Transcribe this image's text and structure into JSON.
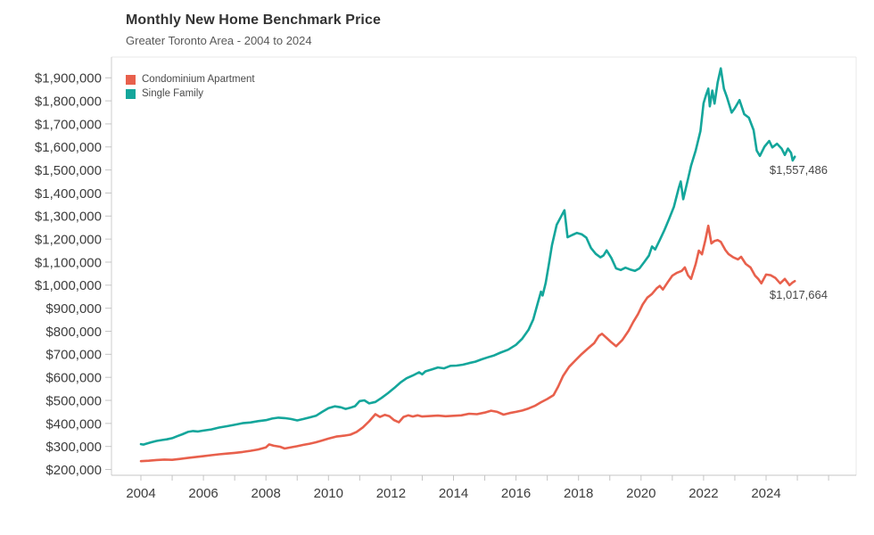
{
  "header": {
    "title": "Monthly New Home Benchmark Price",
    "subtitle": "Greater Toronto Area - 2004 to 2024"
  },
  "legend": {
    "items": [
      {
        "label": "Condominium Apartment",
        "color": "#e8604c"
      },
      {
        "label": "Single Family",
        "color": "#14a69b"
      }
    ]
  },
  "annotations": {
    "single_family_end": "$1,557,486",
    "condo_end": "$1,017,664"
  },
  "chart_data": {
    "type": "line",
    "title": "Monthly New Home Benchmark Price",
    "subtitle": "Greater Toronto Area - 2004 to 2024",
    "legend_position": "top-left-inside",
    "grid": false,
    "x_axis": {
      "range": [
        2003.05,
        2026.9
      ],
      "labeled_tick_years": [
        2004,
        2006,
        2008,
        2010,
        2012,
        2014,
        2016,
        2018,
        2020,
        2022,
        2024
      ],
      "minor_tick_years": [
        2004,
        2005,
        2006,
        2007,
        2008,
        2009,
        2010,
        2011,
        2012,
        2013,
        2014,
        2015,
        2016,
        2017,
        2018,
        2019,
        2020,
        2021,
        2022,
        2023,
        2024,
        2025,
        2026
      ],
      "tick_labels": [
        "2004",
        "2006",
        "2008",
        "2010",
        "2012",
        "2014",
        "2016",
        "2018",
        "2020",
        "2022",
        "2024"
      ]
    },
    "y_axis": {
      "range": [
        175000,
        1990000
      ],
      "tick_values": [
        200000,
        300000,
        400000,
        500000,
        600000,
        700000,
        800000,
        900000,
        1000000,
        1100000,
        1200000,
        1300000,
        1400000,
        1500000,
        1600000,
        1700000,
        1800000,
        1900000
      ],
      "tick_labels": [
        "$200,000",
        "$300,000",
        "$400,000",
        "$500,000",
        "$600,000",
        "$700,000",
        "$800,000",
        "$900,000",
        "$1,000,000",
        "$1,100,000",
        "$1,200,000",
        "$1,300,000",
        "$1,400,000",
        "$1,500,000",
        "$1,600,000",
        "$1,700,000",
        "$1,800,000",
        "$1,900,000"
      ]
    },
    "series": [
      {
        "name": "Condominium Apartment",
        "color": "#e8604c",
        "end_label": "$1,017,664",
        "end_value": 1017664,
        "points": [
          [
            2004.0,
            236000
          ],
          [
            2004.25,
            238000
          ],
          [
            2004.5,
            241000
          ],
          [
            2004.75,
            243000
          ],
          [
            2005.0,
            242000
          ],
          [
            2005.25,
            246000
          ],
          [
            2005.5,
            250000
          ],
          [
            2005.75,
            254000
          ],
          [
            2006.0,
            258000
          ],
          [
            2006.25,
            262000
          ],
          [
            2006.5,
            266000
          ],
          [
            2006.75,
            269000
          ],
          [
            2007.0,
            272000
          ],
          [
            2007.25,
            276000
          ],
          [
            2007.5,
            281000
          ],
          [
            2007.75,
            287000
          ],
          [
            2008.0,
            296000
          ],
          [
            2008.1,
            309000
          ],
          [
            2008.25,
            303000
          ],
          [
            2008.45,
            299000
          ],
          [
            2008.6,
            291000
          ],
          [
            2008.75,
            295000
          ],
          [
            2009.0,
            301000
          ],
          [
            2009.2,
            307000
          ],
          [
            2009.4,
            312000
          ],
          [
            2009.6,
            318000
          ],
          [
            2009.8,
            326000
          ],
          [
            2010.0,
            334000
          ],
          [
            2010.25,
            343000
          ],
          [
            2010.5,
            347000
          ],
          [
            2010.7,
            351000
          ],
          [
            2010.9,
            363000
          ],
          [
            2011.1,
            383000
          ],
          [
            2011.3,
            409000
          ],
          [
            2011.5,
            440000
          ],
          [
            2011.65,
            428000
          ],
          [
            2011.8,
            437000
          ],
          [
            2011.95,
            431000
          ],
          [
            2012.1,
            414000
          ],
          [
            2012.25,
            405000
          ],
          [
            2012.4,
            428000
          ],
          [
            2012.55,
            435000
          ],
          [
            2012.7,
            430000
          ],
          [
            2012.85,
            435000
          ],
          [
            2013.0,
            430000
          ],
          [
            2013.25,
            432000
          ],
          [
            2013.5,
            434000
          ],
          [
            2013.75,
            431000
          ],
          [
            2014.0,
            433000
          ],
          [
            2014.25,
            435000
          ],
          [
            2014.5,
            442000
          ],
          [
            2014.75,
            440000
          ],
          [
            2015.0,
            447000
          ],
          [
            2015.2,
            455000
          ],
          [
            2015.4,
            450000
          ],
          [
            2015.6,
            438000
          ],
          [
            2015.8,
            445000
          ],
          [
            2016.0,
            450000
          ],
          [
            2016.2,
            456000
          ],
          [
            2016.4,
            465000
          ],
          [
            2016.6,
            476000
          ],
          [
            2016.8,
            492000
          ],
          [
            2017.0,
            506000
          ],
          [
            2017.2,
            523000
          ],
          [
            2017.35,
            560000
          ],
          [
            2017.5,
            605000
          ],
          [
            2017.7,
            646000
          ],
          [
            2017.9,
            674000
          ],
          [
            2018.1,
            701000
          ],
          [
            2018.3,
            725000
          ],
          [
            2018.5,
            748000
          ],
          [
            2018.65,
            780000
          ],
          [
            2018.75,
            789000
          ],
          [
            2018.9,
            771000
          ],
          [
            2019.05,
            752000
          ],
          [
            2019.2,
            735000
          ],
          [
            2019.4,
            762000
          ],
          [
            2019.6,
            802000
          ],
          [
            2019.75,
            840000
          ],
          [
            2019.9,
            874000
          ],
          [
            2020.05,
            916000
          ],
          [
            2020.2,
            946000
          ],
          [
            2020.35,
            962000
          ],
          [
            2020.5,
            986000
          ],
          [
            2020.6,
            997000
          ],
          [
            2020.7,
            981000
          ],
          [
            2020.85,
            1012000
          ],
          [
            2021.0,
            1041000
          ],
          [
            2021.15,
            1054000
          ],
          [
            2021.3,
            1062000
          ],
          [
            2021.4,
            1077000
          ],
          [
            2021.5,
            1043000
          ],
          [
            2021.6,
            1027000
          ],
          [
            2021.75,
            1092000
          ],
          [
            2021.85,
            1150000
          ],
          [
            2021.95,
            1134000
          ],
          [
            2022.05,
            1192000
          ],
          [
            2022.15,
            1258000
          ],
          [
            2022.25,
            1181000
          ],
          [
            2022.35,
            1192000
          ],
          [
            2022.45,
            1196000
          ],
          [
            2022.55,
            1188000
          ],
          [
            2022.7,
            1152000
          ],
          [
            2022.8,
            1135000
          ],
          [
            2022.95,
            1121000
          ],
          [
            2023.1,
            1112000
          ],
          [
            2023.2,
            1123000
          ],
          [
            2023.35,
            1092000
          ],
          [
            2023.5,
            1077000
          ],
          [
            2023.65,
            1041000
          ],
          [
            2023.75,
            1027000
          ],
          [
            2023.85,
            1008000
          ],
          [
            2024.0,
            1046000
          ],
          [
            2024.15,
            1043000
          ],
          [
            2024.3,
            1031000
          ],
          [
            2024.45,
            1008000
          ],
          [
            2024.6,
            1027000
          ],
          [
            2024.75,
            1000000
          ],
          [
            2024.85,
            1012000
          ],
          [
            2024.92,
            1017664
          ]
        ]
      },
      {
        "name": "Single Family",
        "color": "#14a69b",
        "end_label": "$1,557,486",
        "end_value": 1557486,
        "points": [
          [
            2004.0,
            310000
          ],
          [
            2004.08,
            308000
          ],
          [
            2004.17,
            312000
          ],
          [
            2004.33,
            318000
          ],
          [
            2004.5,
            324000
          ],
          [
            2004.67,
            328000
          ],
          [
            2004.83,
            331000
          ],
          [
            2005.0,
            336000
          ],
          [
            2005.17,
            345000
          ],
          [
            2005.33,
            353000
          ],
          [
            2005.5,
            363000
          ],
          [
            2005.67,
            367000
          ],
          [
            2005.83,
            365000
          ],
          [
            2006.0,
            369000
          ],
          [
            2006.25,
            374000
          ],
          [
            2006.5,
            382000
          ],
          [
            2006.75,
            388000
          ],
          [
            2007.0,
            394000
          ],
          [
            2007.25,
            401000
          ],
          [
            2007.5,
            404000
          ],
          [
            2007.75,
            410000
          ],
          [
            2008.0,
            414000
          ],
          [
            2008.2,
            421000
          ],
          [
            2008.4,
            425000
          ],
          [
            2008.6,
            423000
          ],
          [
            2008.8,
            419000
          ],
          [
            2009.0,
            413000
          ],
          [
            2009.2,
            419000
          ],
          [
            2009.4,
            426000
          ],
          [
            2009.6,
            433000
          ],
          [
            2009.8,
            450000
          ],
          [
            2010.0,
            466000
          ],
          [
            2010.2,
            474000
          ],
          [
            2010.4,
            470000
          ],
          [
            2010.55,
            463000
          ],
          [
            2010.7,
            468000
          ],
          [
            2010.85,
            475000
          ],
          [
            2011.0,
            497000
          ],
          [
            2011.15,
            500000
          ],
          [
            2011.3,
            487000
          ],
          [
            2011.5,
            493000
          ],
          [
            2011.7,
            511000
          ],
          [
            2011.9,
            531000
          ],
          [
            2012.1,
            553000
          ],
          [
            2012.3,
            577000
          ],
          [
            2012.5,
            596000
          ],
          [
            2012.7,
            608000
          ],
          [
            2012.9,
            622000
          ],
          [
            2013.0,
            613000
          ],
          [
            2013.1,
            626000
          ],
          [
            2013.3,
            634000
          ],
          [
            2013.5,
            643000
          ],
          [
            2013.7,
            639000
          ],
          [
            2013.9,
            650000
          ],
          [
            2014.1,
            651000
          ],
          [
            2014.3,
            655000
          ],
          [
            2014.5,
            662000
          ],
          [
            2014.7,
            668000
          ],
          [
            2014.9,
            678000
          ],
          [
            2015.1,
            687000
          ],
          [
            2015.3,
            695000
          ],
          [
            2015.5,
            707000
          ],
          [
            2015.75,
            720000
          ],
          [
            2016.0,
            741000
          ],
          [
            2016.2,
            768000
          ],
          [
            2016.4,
            806000
          ],
          [
            2016.55,
            851000
          ],
          [
            2016.7,
            924000
          ],
          [
            2016.8,
            972000
          ],
          [
            2016.85,
            955000
          ],
          [
            2016.95,
            1010000
          ],
          [
            2017.05,
            1090000
          ],
          [
            2017.15,
            1173000
          ],
          [
            2017.3,
            1262000
          ],
          [
            2017.45,
            1300000
          ],
          [
            2017.55,
            1325000
          ],
          [
            2017.65,
            1208000
          ],
          [
            2017.8,
            1218000
          ],
          [
            2017.95,
            1227000
          ],
          [
            2018.1,
            1221000
          ],
          [
            2018.25,
            1206000
          ],
          [
            2018.4,
            1161000
          ],
          [
            2018.55,
            1136000
          ],
          [
            2018.7,
            1121000
          ],
          [
            2018.8,
            1129000
          ],
          [
            2018.9,
            1151000
          ],
          [
            2019.05,
            1118000
          ],
          [
            2019.2,
            1073000
          ],
          [
            2019.35,
            1066000
          ],
          [
            2019.5,
            1076000
          ],
          [
            2019.65,
            1068000
          ],
          [
            2019.8,
            1062000
          ],
          [
            2019.95,
            1073000
          ],
          [
            2020.1,
            1100000
          ],
          [
            2020.25,
            1128000
          ],
          [
            2020.35,
            1168000
          ],
          [
            2020.45,
            1155000
          ],
          [
            2020.6,
            1196000
          ],
          [
            2020.75,
            1240000
          ],
          [
            2020.9,
            1288000
          ],
          [
            2021.05,
            1340000
          ],
          [
            2021.2,
            1419000
          ],
          [
            2021.27,
            1450000
          ],
          [
            2021.35,
            1373000
          ],
          [
            2021.5,
            1460000
          ],
          [
            2021.6,
            1519000
          ],
          [
            2021.75,
            1585000
          ],
          [
            2021.9,
            1669000
          ],
          [
            2022.0,
            1790000
          ],
          [
            2022.08,
            1826000
          ],
          [
            2022.15,
            1853000
          ],
          [
            2022.2,
            1776000
          ],
          [
            2022.28,
            1845000
          ],
          [
            2022.35,
            1788000
          ],
          [
            2022.45,
            1880000
          ],
          [
            2022.55,
            1941000
          ],
          [
            2022.65,
            1853000
          ],
          [
            2022.75,
            1815000
          ],
          [
            2022.9,
            1749000
          ],
          [
            2023.0,
            1768000
          ],
          [
            2023.15,
            1803000
          ],
          [
            2023.3,
            1742000
          ],
          [
            2023.45,
            1727000
          ],
          [
            2023.6,
            1673000
          ],
          [
            2023.7,
            1584000
          ],
          [
            2023.8,
            1561000
          ],
          [
            2023.95,
            1601000
          ],
          [
            2024.1,
            1626000
          ],
          [
            2024.2,
            1598000
          ],
          [
            2024.35,
            1614000
          ],
          [
            2024.5,
            1592000
          ],
          [
            2024.6,
            1565000
          ],
          [
            2024.7,
            1593000
          ],
          [
            2024.8,
            1574000
          ],
          [
            2024.85,
            1541000
          ],
          [
            2024.92,
            1557486
          ]
        ]
      }
    ]
  }
}
